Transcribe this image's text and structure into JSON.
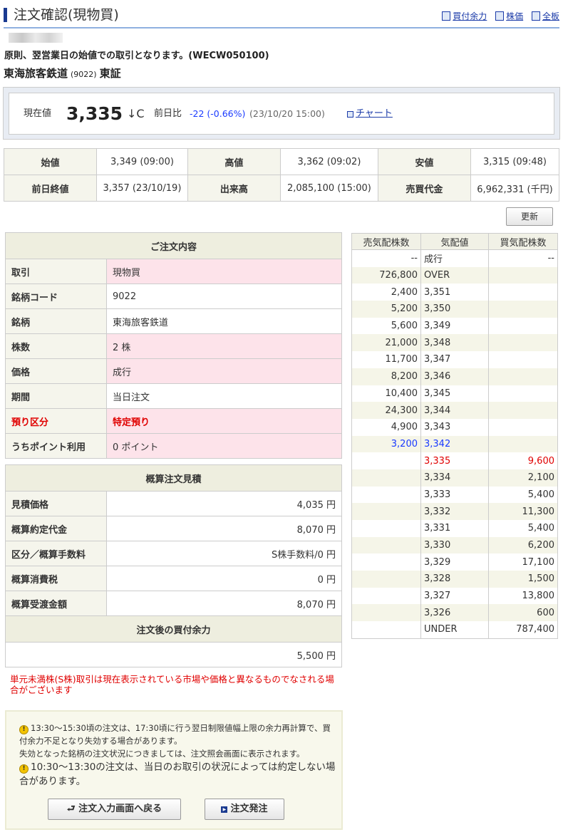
{
  "header": {
    "title": "注文確認(現物買)",
    "links": [
      {
        "label": "買付余力",
        "icon": "yen-doc-icon"
      },
      {
        "label": "株価",
        "icon": "doc-icon"
      },
      {
        "label": "全板",
        "icon": "doc-icon"
      }
    ]
  },
  "notice": "原則、翌営業日の始値での取引となります。(WECW050100)",
  "stock": {
    "name": "東海旅客鉄道",
    "code": "(9022)",
    "market": "東証"
  },
  "price": {
    "label": "現在値",
    "value": "3,335",
    "mark": "↓C",
    "change_label": "前日比",
    "change": "-22 (-0.66%)",
    "time": "(23/10/20 15:00)",
    "chart_link": "チャート"
  },
  "quotes": [
    [
      {
        "l": "始値",
        "v": "3,349 (09:00)"
      },
      {
        "l": "高値",
        "v": "3,362 (09:02)"
      },
      {
        "l": "安値",
        "v": "3,315 (09:48)"
      }
    ],
    [
      {
        "l": "前日終値",
        "v": "3,357 (23/10/19)"
      },
      {
        "l": "出来高",
        "v": "2,085,100 (15:00)"
      },
      {
        "l": "売買代金",
        "v": "6,962,331 (千円)"
      }
    ]
  ],
  "refresh_label": "更新",
  "order": {
    "title": "ご注文内容",
    "rows": [
      {
        "l": "取引",
        "v": "現物買"
      },
      {
        "l": "銘柄コード",
        "v": "9022"
      },
      {
        "l": "銘柄",
        "v": "東海旅客鉄道"
      },
      {
        "l": "株数",
        "v": "2 株"
      },
      {
        "l": "価格",
        "v": "成行"
      },
      {
        "l": "期間",
        "v": "当日注文"
      },
      {
        "l": "預り区分",
        "v": "特定預り"
      },
      {
        "l": "うちポイント利用",
        "v": "0 ポイント"
      }
    ]
  },
  "estimate": {
    "title": "概算注文見積",
    "rows": [
      {
        "l": "見積価格",
        "v": "4,035 円"
      },
      {
        "l": "概算約定代金",
        "v": "8,070 円"
      },
      {
        "l": "区分／概算手数料",
        "v": "S株手数料/0 円"
      },
      {
        "l": "概算消費税",
        "v": "0 円"
      },
      {
        "l": "概算受渡金額",
        "v": "8,070 円"
      }
    ],
    "after_title": "注文後の買付余力",
    "after_value": "5,500 円"
  },
  "book": {
    "headers": [
      "売気配株数",
      "気配値",
      "買気配株数"
    ],
    "rows": [
      [
        "--",
        "成行",
        "--"
      ],
      [
        "726,800",
        "OVER",
        ""
      ],
      [
        "2,400",
        "3,351",
        ""
      ],
      [
        "5,200",
        "3,350",
        ""
      ],
      [
        "5,600",
        "3,349",
        ""
      ],
      [
        "21,000",
        "3,348",
        ""
      ],
      [
        "11,700",
        "3,347",
        ""
      ],
      [
        "8,200",
        "3,346",
        ""
      ],
      [
        "10,400",
        "3,345",
        ""
      ],
      [
        "24,300",
        "3,344",
        ""
      ],
      [
        "4,900",
        "3,343",
        ""
      ],
      [
        "3,200",
        "3,342",
        ""
      ],
      [
        "",
        "3,335",
        "9,600"
      ],
      [
        "",
        "3,334",
        "2,100"
      ],
      [
        "",
        "3,333",
        "5,400"
      ],
      [
        "",
        "3,332",
        "11,300"
      ],
      [
        "",
        "3,331",
        "5,400"
      ],
      [
        "",
        "3,330",
        "6,200"
      ],
      [
        "",
        "3,329",
        "17,100"
      ],
      [
        "",
        "3,328",
        "1,500"
      ],
      [
        "",
        "3,327",
        "13,800"
      ],
      [
        "",
        "3,326",
        "600"
      ],
      [
        "",
        "UNDER",
        "787,400"
      ]
    ]
  },
  "warning": "単元未満株(S株)取引は現在表示されている市場や価格と異なるものでなされる場合がございます",
  "info": {
    "line1": "13:30～15:30頃の注文は、17:30頃に行う翌日制限値幅上限の余力再計算で、買付余力不足となり失効する場合があります。",
    "line2": "失効となった銘柄の注文状況につきましては、注文照会画面に表示されます。",
    "line3": "10:30～13:30の注文は、当日のお取引の状況によっては約定しない場合があります。"
  },
  "buttons": {
    "back": "注文入力画面へ戻る",
    "submit": "注文発注"
  }
}
